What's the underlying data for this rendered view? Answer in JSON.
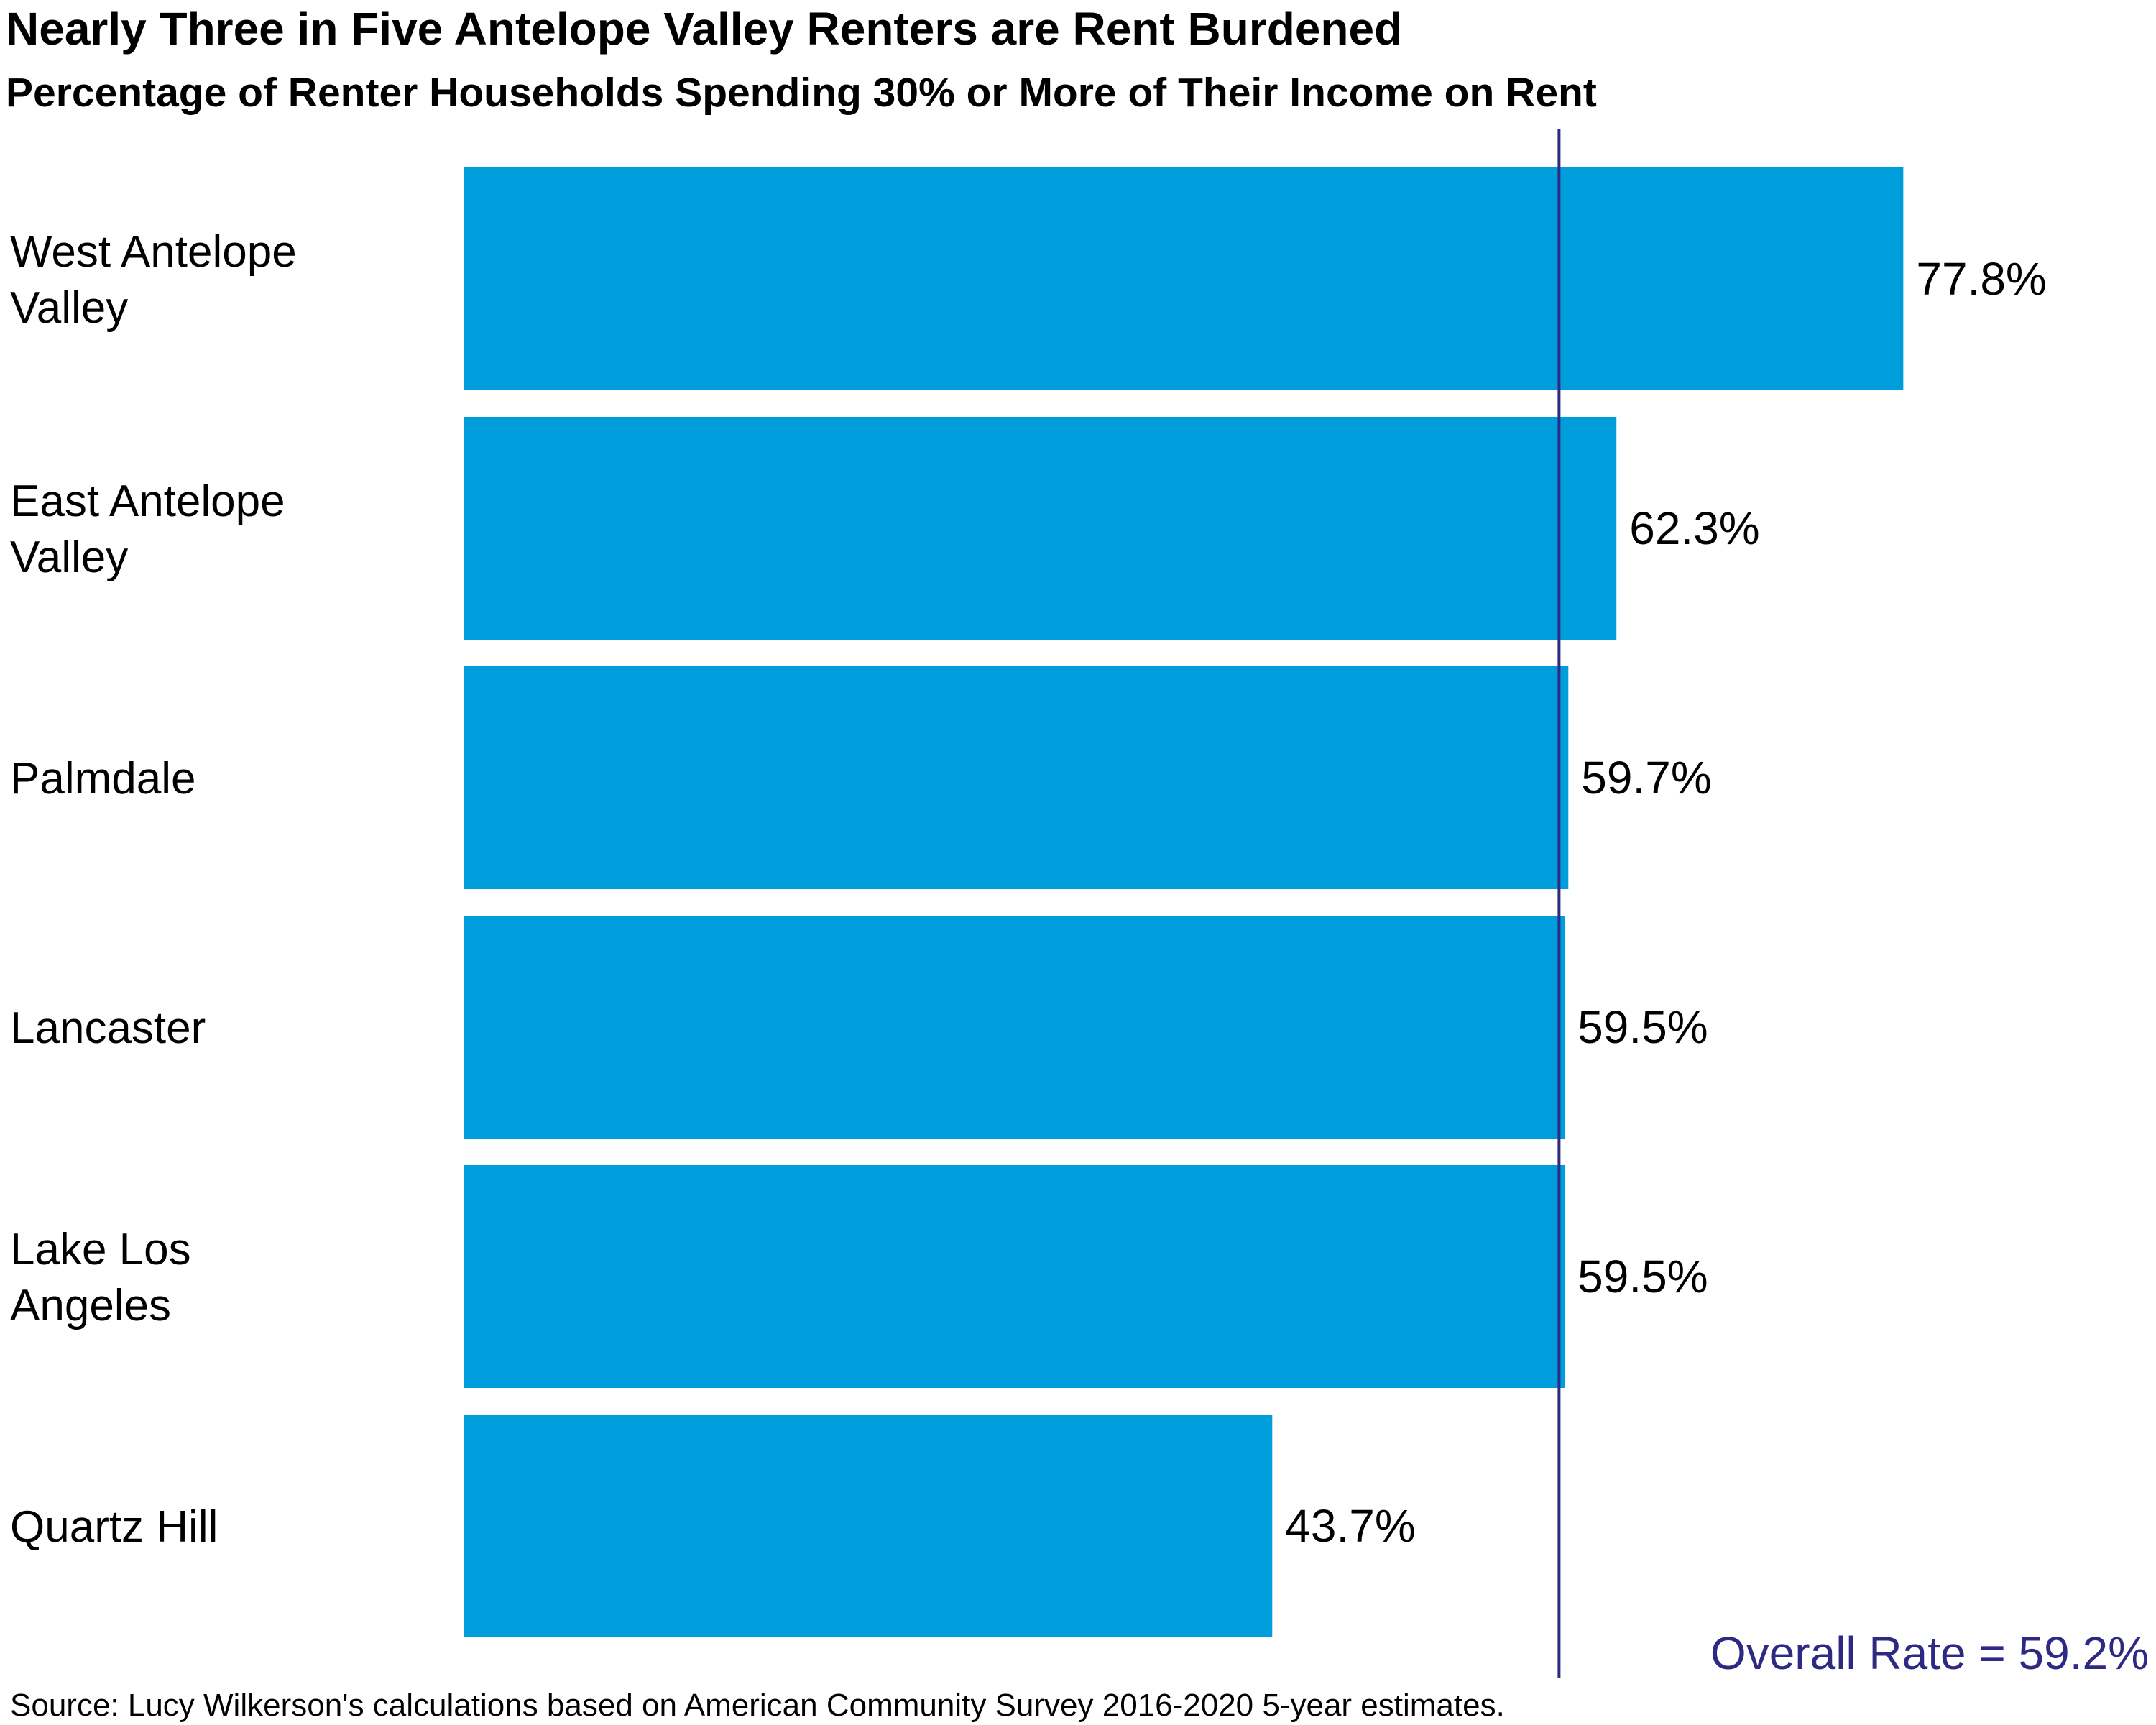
{
  "chart_data": {
    "type": "bar",
    "orientation": "horizontal",
    "title": "Nearly Three in Five Antelope Valley Renters are Rent Burdened",
    "subtitle": "Percentage of Renter Households Spending 30% or More of Their Income on Rent",
    "categories": [
      [
        "West Antelope",
        "Valley"
      ],
      [
        "East Antelope",
        "Valley"
      ],
      [
        "Palmdale"
      ],
      [
        "Lancaster"
      ],
      [
        "Lake Los",
        "Angeles"
      ],
      [
        "Quartz Hill"
      ]
    ],
    "values": [
      77.8,
      62.3,
      59.7,
      59.5,
      59.5,
      43.7
    ],
    "value_labels": [
      "77.8%",
      "62.3%",
      "59.7%",
      "59.5%",
      "59.5%",
      "43.7%"
    ],
    "reference_line": {
      "value": 59.2,
      "label": "Overall Rate = 59.2%"
    },
    "bar_color": "#009ddd",
    "reference_color": "#2e2a84",
    "source": "Source: Lucy Wilkerson's calculations based on American Community Survey 2016-2020 5-year estimates."
  }
}
